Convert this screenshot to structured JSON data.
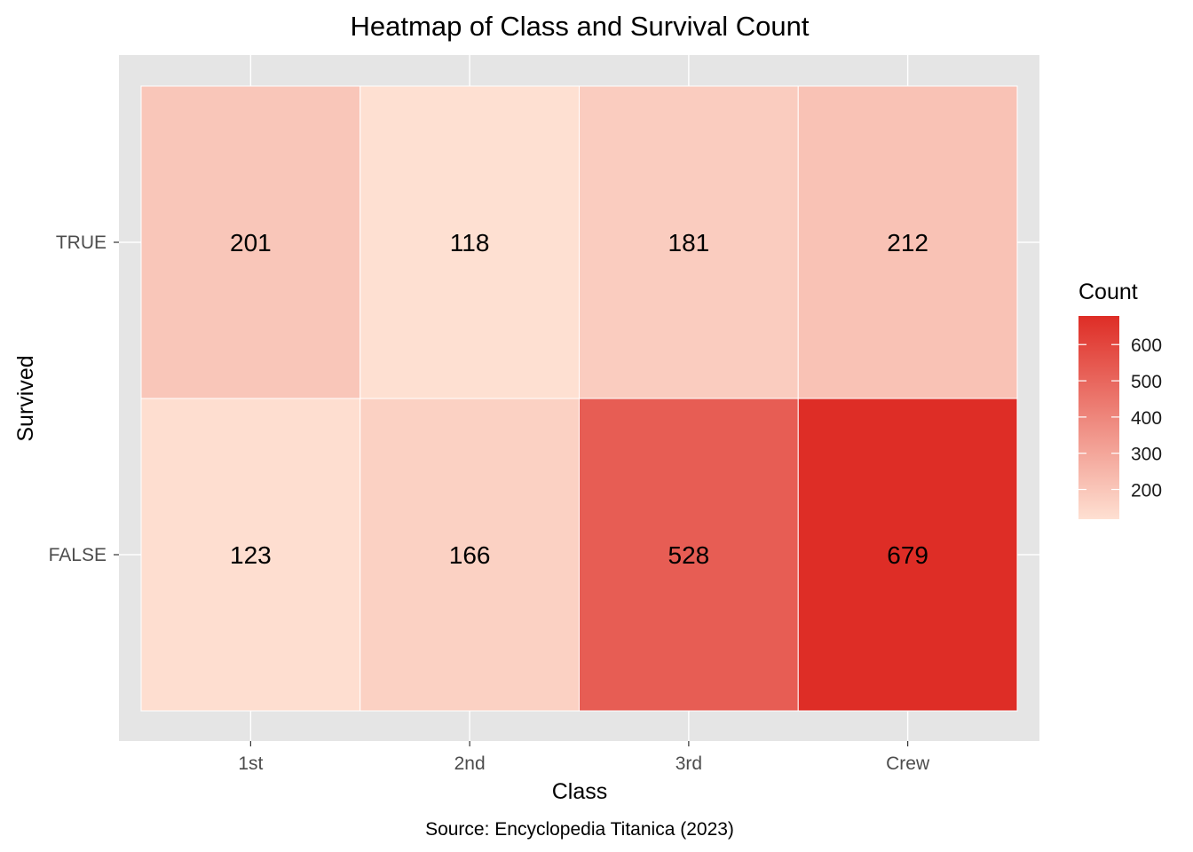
{
  "chart_data": {
    "type": "heatmap",
    "title": "Heatmap of Class and Survival Count",
    "xlabel": "Class",
    "ylabel": "Survived",
    "caption": "Source: Encyclopedia Titanica (2023)",
    "x_categories": [
      "1st",
      "2nd",
      "3rd",
      "Crew"
    ],
    "y_categories": [
      "FALSE",
      "TRUE"
    ],
    "cells": [
      {
        "x": "1st",
        "y": "TRUE",
        "value": 201
      },
      {
        "x": "2nd",
        "y": "TRUE",
        "value": 118
      },
      {
        "x": "3rd",
        "y": "TRUE",
        "value": 181
      },
      {
        "x": "Crew",
        "y": "TRUE",
        "value": 212
      },
      {
        "x": "1st",
        "y": "FALSE",
        "value": 123
      },
      {
        "x": "2nd",
        "y": "FALSE",
        "value": 166
      },
      {
        "x": "3rd",
        "y": "FALSE",
        "value": 528
      },
      {
        "x": "Crew",
        "y": "FALSE",
        "value": 679
      }
    ],
    "color_scale": {
      "low": "#fee0d2",
      "high": "#de2d26",
      "min": 118,
      "max": 679
    },
    "legend": {
      "title": "Count",
      "position": "right",
      "breaks": [
        200,
        300,
        400,
        500,
        600
      ],
      "labels": [
        "200",
        "300",
        "400",
        "500",
        "600"
      ]
    },
    "panel_background": "#e5e5e5",
    "grid": true,
    "cell_border": "#ffffff"
  }
}
